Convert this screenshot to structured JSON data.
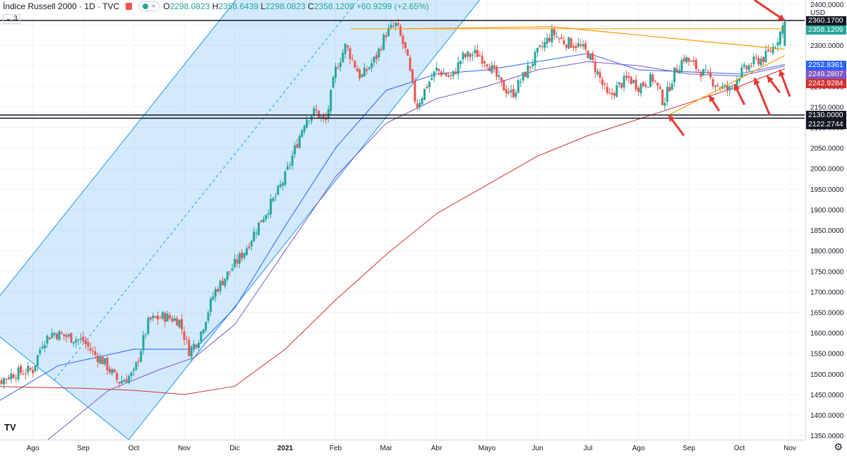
{
  "legend": {
    "title": "Índice Russell 2000 · 1D · TVC",
    "open": "2298.0823",
    "high": "2358.6439",
    "low": "2298.0823",
    "close": "2358.1209",
    "change": "+60.9299 (+2.65%)",
    "collapse_count": "3"
  },
  "currency": "USD",
  "logo": "TV",
  "colors": {
    "up": "#26a69a",
    "down": "#ef5350",
    "channel": "#2196f3",
    "ma_blue": "#2962ff",
    "ma_purple": "#7e57c2",
    "ma_red": "#d32f2f",
    "orange": "#ff9800",
    "arrow": "#e53935"
  },
  "price_tags": [
    {
      "label": "2360.1700",
      "value": 2360.17,
      "bg": "#131722"
    },
    {
      "label": "2358.1209",
      "value": 2358.1209,
      "bg": "#26a69a"
    },
    {
      "label": "2252.8361",
      "value": 2252.8361,
      "bg": "#2962ff"
    },
    {
      "label": "2249.2807",
      "value": 2249.2807,
      "bg": "#7e57c2"
    },
    {
      "label": "2242.9284",
      "value": 2242.9284,
      "bg": "#d32f2f"
    },
    {
      "label": "2130.0000",
      "value": 2130.0,
      "bg": "#131722"
    },
    {
      "label": "2122.2744",
      "value": 2122.2744,
      "bg": "#131722"
    }
  ],
  "chart_data": {
    "type": "candlestick",
    "title": "Índice Russell 2000",
    "interval": "1D",
    "source": "TVC",
    "ylim": [
      1340,
      2410
    ],
    "y_ticks": [
      1350,
      1400,
      1450,
      1500,
      1550,
      1600,
      1650,
      1700,
      1750,
      1800,
      1850,
      1900,
      1950,
      2000,
      2050,
      2100,
      2150,
      2200,
      2250,
      2300,
      2350,
      2400
    ],
    "x_tick_labels": [
      "Ago",
      "Sep",
      "Oct",
      "Nov",
      "Dic",
      "2021",
      "Feb",
      "Mar",
      "Abr",
      "Mayo",
      "Jun",
      "Jul",
      "Ago",
      "Sep",
      "Oct",
      "Nov"
    ],
    "x_tick_months": [
      1,
      2,
      3,
      4,
      5,
      6,
      7,
      8,
      9,
      10,
      11,
      12,
      13,
      14,
      15,
      16
    ],
    "close_path": [
      [
        0.0,
        1440
      ],
      [
        0.3,
        1480
      ],
      [
        0.6,
        1500
      ],
      [
        1.0,
        1510
      ],
      [
        1.2,
        1580
      ],
      [
        1.4,
        1600
      ],
      [
        1.7,
        1590
      ],
      [
        2.0,
        1580
      ],
      [
        2.2,
        1550
      ],
      [
        2.4,
        1530
      ],
      [
        2.7,
        1480
      ],
      [
        3.0,
        1500
      ],
      [
        3.3,
        1630
      ],
      [
        3.6,
        1640
      ],
      [
        3.9,
        1630
      ],
      [
        4.1,
        1555
      ],
      [
        4.3,
        1590
      ],
      [
        4.6,
        1700
      ],
      [
        4.9,
        1750
      ],
      [
        5.2,
        1800
      ],
      [
        5.5,
        1870
      ],
      [
        5.8,
        1930
      ],
      [
        6.0,
        1980
      ],
      [
        6.2,
        2050
      ],
      [
        6.4,
        2120
      ],
      [
        6.6,
        2140
      ],
      [
        6.8,
        2110
      ],
      [
        7.0,
        2240
      ],
      [
        7.2,
        2300
      ],
      [
        7.5,
        2220
      ],
      [
        7.8,
        2270
      ],
      [
        8.0,
        2330
      ],
      [
        8.2,
        2350
      ],
      [
        8.4,
        2280
      ],
      [
        8.6,
        2150
      ],
      [
        8.8,
        2200
      ],
      [
        9.0,
        2240
      ],
      [
        9.3,
        2220
      ],
      [
        9.5,
        2270
      ],
      [
        9.8,
        2280
      ],
      [
        10.0,
        2260
      ],
      [
        10.3,
        2200
      ],
      [
        10.5,
        2180
      ],
      [
        10.8,
        2240
      ],
      [
        11.0,
        2280
      ],
      [
        11.3,
        2330
      ],
      [
        11.5,
        2310
      ],
      [
        11.8,
        2300
      ],
      [
        12.0,
        2280
      ],
      [
        12.2,
        2230
      ],
      [
        12.4,
        2170
      ],
      [
        12.6,
        2200
      ],
      [
        12.8,
        2220
      ],
      [
        13.0,
        2200
      ],
      [
        13.3,
        2220
      ],
      [
        13.5,
        2160
      ],
      [
        13.7,
        2230
      ],
      [
        13.9,
        2270
      ],
      [
        14.1,
        2250
      ],
      [
        14.3,
        2230
      ],
      [
        14.6,
        2200
      ],
      [
        14.8,
        2190
      ],
      [
        15.0,
        2230
      ],
      [
        15.3,
        2260
      ],
      [
        15.5,
        2270
      ],
      [
        15.7,
        2300
      ],
      [
        15.9,
        2358
      ]
    ],
    "moving_averages": [
      {
        "name": "MA blue",
        "color": "#2962ff",
        "last": 2252.8361,
        "path": [
          [
            0.0,
            1410
          ],
          [
            1.5,
            1520
          ],
          [
            3.0,
            1560
          ],
          [
            4.2,
            1560
          ],
          [
            5.0,
            1660
          ],
          [
            6.0,
            1860
          ],
          [
            7.0,
            2050
          ],
          [
            8.0,
            2190
          ],
          [
            9.0,
            2230
          ],
          [
            10.0,
            2240
          ],
          [
            11.0,
            2260
          ],
          [
            12.0,
            2280
          ],
          [
            13.0,
            2240
          ],
          [
            14.0,
            2235
          ],
          [
            15.0,
            2230
          ],
          [
            15.9,
            2253
          ]
        ]
      },
      {
        "name": "MA purple",
        "color": "#7e57c2",
        "last": 2249.2807,
        "path": [
          [
            1.3,
            1340
          ],
          [
            2.5,
            1460
          ],
          [
            3.5,
            1510
          ],
          [
            4.2,
            1540
          ],
          [
            5.0,
            1620
          ],
          [
            6.0,
            1800
          ],
          [
            7.0,
            1980
          ],
          [
            8.0,
            2110
          ],
          [
            9.0,
            2170
          ],
          [
            10.0,
            2200
          ],
          [
            11.0,
            2240
          ],
          [
            12.0,
            2260
          ],
          [
            13.0,
            2250
          ],
          [
            14.0,
            2230
          ],
          [
            15.0,
            2225
          ],
          [
            15.9,
            2249
          ]
        ]
      },
      {
        "name": "MA red",
        "color": "#d32f2f",
        "last": 2242.9284,
        "path": [
          [
            0.0,
            1470
          ],
          [
            2.0,
            1465
          ],
          [
            3.0,
            1460
          ],
          [
            4.0,
            1450
          ],
          [
            5.0,
            1470
          ],
          [
            6.0,
            1560
          ],
          [
            7.0,
            1680
          ],
          [
            8.0,
            1790
          ],
          [
            9.0,
            1890
          ],
          [
            10.0,
            1960
          ],
          [
            11.0,
            2030
          ],
          [
            12.0,
            2080
          ],
          [
            13.0,
            2120
          ],
          [
            14.0,
            2160
          ],
          [
            15.0,
            2200
          ],
          [
            15.9,
            2243
          ]
        ]
      }
    ],
    "horizontal_levels": [
      2360.17,
      2130.0,
      2122.2744
    ],
    "channel": {
      "lower_start": [
        2.9,
        1340
      ],
      "lower_end": [
        8.1,
        2140
      ],
      "width": 270
    },
    "triangle": {
      "top": [
        [
          8.4,
          2340
        ],
        [
          11.3,
          2345
        ],
        [
          15.9,
          2290
        ]
      ],
      "bottom": [
        [
          13.6,
          2130
        ],
        [
          15.9,
          2275
        ]
      ],
      "flat": [
        [
          7.3,
          2340
        ],
        [
          15.9,
          2340
        ]
      ]
    },
    "arrows": [
      {
        "tip": [
          15.9,
          2360
        ],
        "from": [
          15.3,
          2410
        ]
      },
      {
        "tip": [
          15.8,
          2240
        ],
        "from": [
          16.0,
          2175
        ]
      },
      {
        "tip": [
          13.6,
          2130
        ],
        "from": [
          13.9,
          2080
        ]
      },
      {
        "tip": [
          14.4,
          2178
        ],
        "from": [
          14.6,
          2140
        ]
      },
      {
        "tip": [
          14.9,
          2205
        ],
        "from": [
          15.1,
          2155
        ]
      },
      {
        "tip": [
          15.3,
          2220
        ],
        "from": [
          15.6,
          2130
        ]
      },
      {
        "tip": [
          15.55,
          2225
        ],
        "from": [
          15.8,
          2185
        ]
      }
    ]
  }
}
